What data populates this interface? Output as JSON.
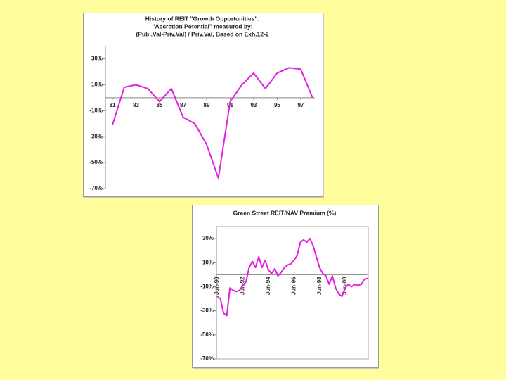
{
  "chart_data": [
    {
      "type": "line",
      "title": [
        "History of REIT \"Growth Opportunities\":",
        "\"Accretion Potential\" measured by:",
        "(Publ.Val-Priv.Val) / Priv.Val, Based on Exh.12-2"
      ],
      "x": [
        81,
        82,
        83,
        84,
        85,
        86,
        87,
        88,
        89,
        90,
        91,
        92,
        93,
        94,
        95,
        96,
        97,
        98
      ],
      "series": [
        {
          "color": "#e020e0",
          "values": [
            -21,
            8,
            10,
            7,
            -3,
            7,
            -15,
            -20,
            -36,
            -62,
            -3,
            10,
            19,
            7,
            19,
            23,
            22,
            0
          ]
        }
      ],
      "xlim": [
        80.4,
        98.2
      ],
      "xticks": [
        81,
        83,
        85,
        87,
        89,
        91,
        93,
        95,
        97
      ],
      "ylim": [
        -70,
        40
      ],
      "yticks": [
        {
          "value": 30,
          "label": "30%"
        },
        {
          "value": 10,
          "label": "10%"
        },
        {
          "value": -10,
          "label": "-10%"
        },
        {
          "value": -30,
          "label": "-30%"
        },
        {
          "value": -50,
          "label": "-50%"
        },
        {
          "value": -70,
          "label": "-70%"
        }
      ],
      "grid": false
    },
    {
      "type": "line",
      "title": [
        "Green Street REIT/NAV Premium (%)"
      ],
      "categories": [
        "Jun-90",
        null,
        null,
        null,
        null,
        null,
        null,
        null,
        "Jun-92",
        null,
        null,
        null,
        null,
        null,
        null,
        null,
        "Jun-94",
        null,
        null,
        null,
        null,
        null,
        null,
        null,
        "Jun-96",
        null,
        null,
        null,
        null,
        null,
        null,
        null,
        "Jun-98",
        null,
        null,
        null,
        null,
        null,
        null,
        null,
        "Jun-00",
        null,
        null,
        null,
        null,
        null,
        null,
        null
      ],
      "series": [
        {
          "color": "#e020e0",
          "values": [
            -18,
            -20,
            -32,
            -34,
            -11,
            -13,
            -14,
            -13,
            -9,
            -6,
            6,
            11,
            6,
            15,
            6,
            12,
            4,
            1,
            5,
            -1,
            2,
            6,
            8,
            9,
            12,
            16,
            27,
            29,
            27,
            30,
            24,
            15,
            6,
            1,
            -1,
            -8,
            -1,
            -11,
            -16,
            -18,
            -11,
            -8,
            -10,
            -8,
            -9,
            -8,
            -4,
            -3
          ]
        }
      ],
      "ylim": [
        -70,
        40
      ],
      "yticks": [
        {
          "value": 30,
          "label": "30%"
        },
        {
          "value": 10,
          "label": "10%"
        },
        {
          "value": -10,
          "label": "-10%"
        },
        {
          "value": -30,
          "label": "-30%"
        },
        {
          "value": -50,
          "label": "-50%"
        },
        {
          "value": -70,
          "label": "-70%"
        }
      ],
      "grid": false
    }
  ]
}
